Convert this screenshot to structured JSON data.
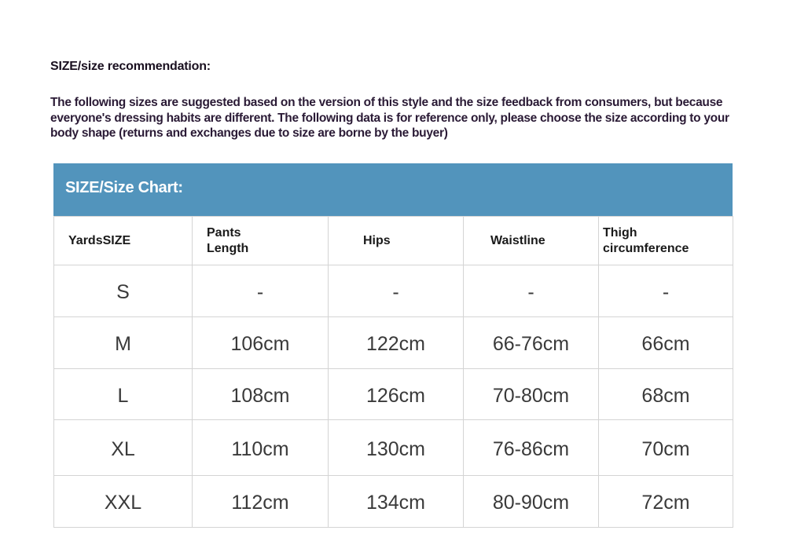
{
  "title": "SIZE/size recommendation:",
  "description": "The following sizes are suggested based on the version of this style and the size feedback from consumers, but because everyone's dressing habits are different. The following data is for reference only, please choose the size according to your body shape (returns and exchanges due to size are borne by the buyer)",
  "chart_title": "SIZE/Size Chart:",
  "accent_color": "#5294bc",
  "headers": [
    "YardsSIZE",
    "Pants Length",
    "Hips",
    "Waistline",
    "Thigh circumference"
  ],
  "rows": [
    [
      "S",
      "-",
      "-",
      "-",
      "-"
    ],
    [
      "M",
      "106cm",
      "122cm",
      "66-76cm",
      "66cm"
    ],
    [
      "L",
      "108cm",
      "126cm",
      "70-80cm",
      "68cm"
    ],
    [
      "XL",
      "110cm",
      "130cm",
      "76-86cm",
      "70cm"
    ],
    [
      "XXL",
      "112cm",
      "134cm",
      "80-90cm",
      "72cm"
    ]
  ]
}
